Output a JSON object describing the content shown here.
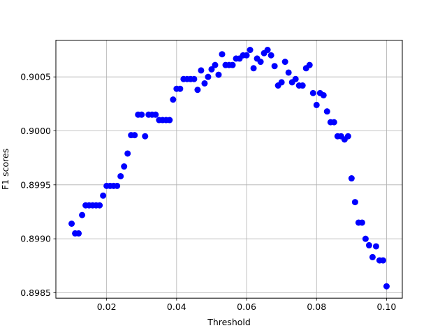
{
  "chart_data": {
    "type": "scatter",
    "title": "",
    "xlabel": "Threshold",
    "ylabel": "F1 scores",
    "xlim": [
      0.0055,
      0.1045
    ],
    "ylim": [
      0.89845,
      0.90084
    ],
    "xticks": [
      {
        "value": 0.02,
        "label": "0.02"
      },
      {
        "value": 0.04,
        "label": "0.04"
      },
      {
        "value": 0.06,
        "label": "0.06"
      },
      {
        "value": 0.08,
        "label": "0.08"
      },
      {
        "value": 0.1,
        "label": "0.10"
      }
    ],
    "yticks": [
      {
        "value": 0.8985,
        "label": "0.8985"
      },
      {
        "value": 0.899,
        "label": "0.8990"
      },
      {
        "value": 0.8995,
        "label": "0.8995"
      },
      {
        "value": 0.9,
        "label": "0.9000"
      },
      {
        "value": 0.9005,
        "label": "0.9005"
      }
    ],
    "grid": true,
    "marker_color": "#0000ff",
    "series": [
      {
        "x": [
          0.01,
          0.011,
          0.012,
          0.013,
          0.014,
          0.015,
          0.016,
          0.017,
          0.018,
          0.019,
          0.02,
          0.021,
          0.022,
          0.023,
          0.024,
          0.025,
          0.026,
          0.027,
          0.028,
          0.029,
          0.03,
          0.031,
          0.032,
          0.033,
          0.034,
          0.035,
          0.036,
          0.037,
          0.038,
          0.039,
          0.04,
          0.041,
          0.042,
          0.043,
          0.044,
          0.045,
          0.046,
          0.047,
          0.048,
          0.049,
          0.05,
          0.051,
          0.052,
          0.053,
          0.054,
          0.055,
          0.056,
          0.057,
          0.058,
          0.059,
          0.06,
          0.061,
          0.062,
          0.063,
          0.064,
          0.065,
          0.066,
          0.067,
          0.068,
          0.069,
          0.07,
          0.071,
          0.072,
          0.073,
          0.074,
          0.075,
          0.076,
          0.077,
          0.078,
          0.079,
          0.08,
          0.081,
          0.082,
          0.083,
          0.084,
          0.085,
          0.086,
          0.087,
          0.088,
          0.089,
          0.09,
          0.091,
          0.092,
          0.093,
          0.094,
          0.095,
          0.096,
          0.097,
          0.098,
          0.099,
          0.1
        ],
        "y": [
          0.89914,
          0.89905,
          0.89905,
          0.89922,
          0.89931,
          0.89931,
          0.89931,
          0.89931,
          0.89931,
          0.8994,
          0.89949,
          0.89949,
          0.89949,
          0.89949,
          0.89958,
          0.89967,
          0.89979,
          0.89996,
          0.89996,
          0.90015,
          0.90015,
          0.89995,
          0.90015,
          0.90015,
          0.90015,
          0.9001,
          0.9001,
          0.9001,
          0.9001,
          0.90029,
          0.90039,
          0.90039,
          0.90048,
          0.90048,
          0.90048,
          0.90048,
          0.90038,
          0.90056,
          0.90044,
          0.9005,
          0.90057,
          0.90061,
          0.90052,
          0.90071,
          0.90061,
          0.90061,
          0.90061,
          0.90067,
          0.90067,
          0.9007,
          0.9007,
          0.90075,
          0.90058,
          0.90067,
          0.90064,
          0.90072,
          0.90075,
          0.9007,
          0.9006,
          0.90042,
          0.90045,
          0.90064,
          0.90054,
          0.90045,
          0.90048,
          0.90042,
          0.90042,
          0.90058,
          0.90061,
          0.90035,
          0.90024,
          0.90035,
          0.90033,
          0.90018,
          0.90008,
          0.90008,
          0.89995,
          0.89995,
          0.89992,
          0.89995,
          0.89956,
          0.89934,
          0.89915,
          0.89915,
          0.899,
          0.89894,
          0.89883,
          0.89893,
          0.8988,
          0.8988,
          0.89856
        ]
      }
    ]
  }
}
